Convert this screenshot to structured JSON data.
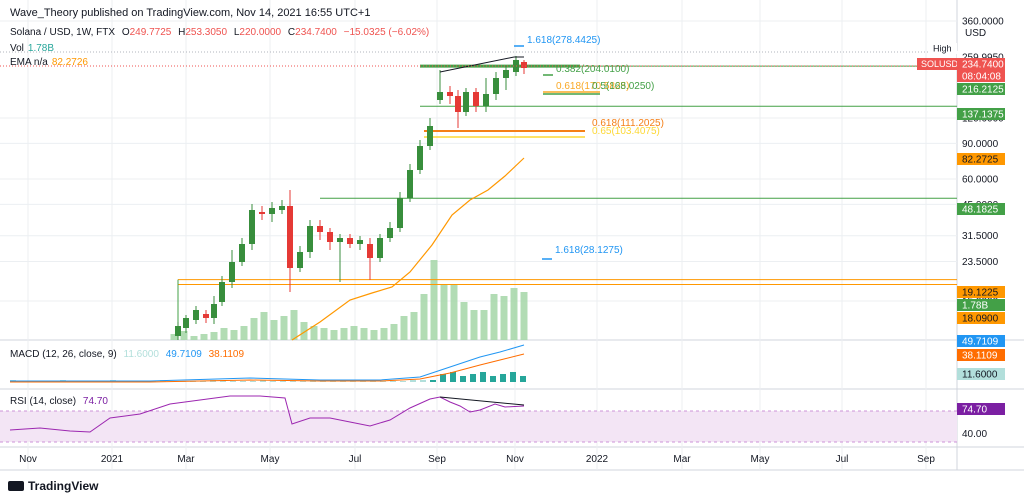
{
  "header": {
    "text": "Wave_Theory published on TradingView.com, Nov 14, 2021 16:55 UTC+1"
  },
  "legend": {
    "symbol": "Solana / USD, 1W, FTX",
    "open_label": "O",
    "open": "249.7725",
    "high_label": "H",
    "high": "253.3050",
    "low_label": "L",
    "low": "220.0000",
    "close_label": "C",
    "close": "234.7400",
    "change": "−15.0325 (−6.02%)",
    "vol_label": "Vol",
    "vol": "1.78B",
    "ema_label": "EMA n/a",
    "ema": "82.2726"
  },
  "price_axis": {
    "currency": "USD",
    "ticks": [
      "360.0000",
      "120.0000",
      "90.0000",
      "60.0000",
      "45.0000",
      "31.5000",
      "23.5000",
      "15.0000"
    ],
    "tags": [
      {
        "text": "259.9950",
        "label": "High"
      },
      {
        "text": "SOLUSD",
        "color": "#ef5350"
      },
      {
        "text": "234.7400",
        "color": "#ef5350"
      },
      {
        "text": "08:04:08",
        "color": "#ef5350"
      },
      {
        "text": "216.2125",
        "color": "#43a047"
      },
      {
        "text": "137.1375",
        "color": "#43a047"
      },
      {
        "text": "82.2725",
        "color": "#ff9800"
      },
      {
        "text": "48.1825",
        "color": "#43a047"
      },
      {
        "text": "19.1225",
        "color": "#ff9800"
      },
      {
        "text": "1.78B",
        "color": "#43a047"
      },
      {
        "text": "18.0900",
        "color": "#ff9800"
      }
    ]
  },
  "annotations": [
    {
      "text": "1.618(278.4425)",
      "color": "#2196f3"
    },
    {
      "text": "0.382(204.0100)",
      "color": "#43a047"
    },
    {
      "text": "0.618(170.5825)",
      "color": "#f9a825"
    },
    {
      "text": "0.5(168.0250)",
      "color": "#43a047"
    },
    {
      "text": "0.618(111.2025)",
      "color": "#f57f17"
    },
    {
      "text": "0.65(103.4075)",
      "color": "#fdd835"
    },
    {
      "text": "1.618(28.1275)",
      "color": "#2196f3"
    }
  ],
  "macd": {
    "label": "MACD (12, 26, close, 9)",
    "hist": "11.6000",
    "macd": "49.7109",
    "signal": "38.1109",
    "tags": [
      {
        "text": "49.7109",
        "color": "#2196f3"
      },
      {
        "text": "38.1109",
        "color": "#ff6d00"
      },
      {
        "text": "11.6000",
        "color": "#b2dfdb"
      }
    ]
  },
  "rsi": {
    "label": "RSI (14, close)",
    "value": "74.70",
    "ticks": [
      "40.00"
    ],
    "tags": [
      {
        "text": "74.70",
        "color": "#7b1fa2"
      }
    ]
  },
  "time_axis": [
    "Nov",
    "2021",
    "Mar",
    "May",
    "Jul",
    "Sep",
    "Nov",
    "2022",
    "Mar",
    "May",
    "Jul",
    "Sep"
  ],
  "footer": {
    "brand": "TradingView"
  },
  "colors": {
    "up": "#26a69a",
    "down": "#ef5350",
    "candle_up": "#388e3c",
    "candle_down": "#e53935",
    "ema": "#ff9800",
    "macd": "#2196f3",
    "signal": "#ff6d00",
    "rsi": "#9c27b0",
    "grid": "#eceff2"
  },
  "chart_data": {
    "type": "candlestick",
    "scale": "log",
    "symbol": "SOLUSD",
    "interval": "1W",
    "ylim": [
      15,
      360
    ],
    "x": [
      "2020-11-09",
      "2021-01-04",
      "2021-03-01",
      "2021-05-03",
      "2021-07-05",
      "2021-09-06",
      "2021-11-01",
      "2022-01-03",
      "2022-03-07",
      "2022-05-02",
      "2022-07-04",
      "2022-09-05"
    ],
    "last_candle": {
      "open": 249.7725,
      "high": 253.305,
      "low": 220.0,
      "close": 234.74
    },
    "high": 259.995,
    "volume": "1.78B",
    "ema": 82.2726,
    "horizontal_levels": [
      216.2125,
      137.1375,
      48.1825,
      19.1225,
      18.09
    ],
    "fib_levels": [
      {
        "ratio": 1.618,
        "value": 278.4425
      },
      {
        "ratio": 0.382,
        "value": 204.01
      },
      {
        "ratio": 0.618,
        "value": 170.5825
      },
      {
        "ratio": 0.5,
        "value": 168.025
      },
      {
        "ratio": 0.618,
        "value": 111.2025
      },
      {
        "ratio": 0.65,
        "value": 103.4075
      },
      {
        "ratio": 1.618,
        "value": 28.1275
      }
    ],
    "macd": {
      "params": [
        12,
        26,
        9
      ],
      "histogram": 11.6,
      "macd": 49.7109,
      "signal": 38.1109
    },
    "rsi": {
      "period": 14,
      "value": 74.7
    }
  }
}
